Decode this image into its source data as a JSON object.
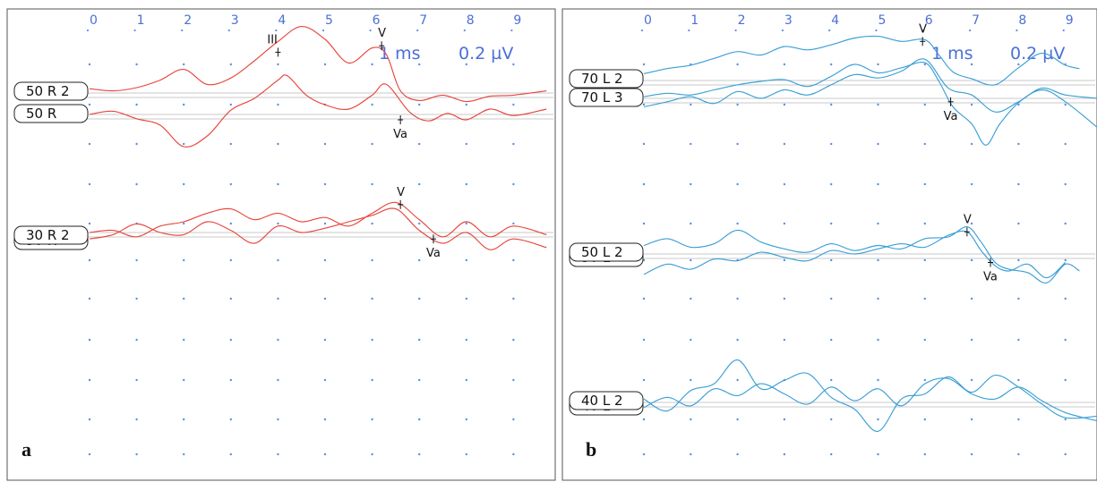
{
  "chart_data": [
    {
      "type": "line",
      "panel_label": "a",
      "xticks": [
        "0",
        "1",
        "2",
        "3",
        "4",
        "5",
        "6",
        "7",
        "8",
        "9"
      ],
      "xlim": [
        0,
        9.7
      ],
      "scale_time": "1 ms",
      "scale_amp": "0.2 µV",
      "trace_color": "#e8453c",
      "grid": "dotted",
      "channels": [
        {
          "label": "50 R 2",
          "series": [
            {
              "x": [
                0,
                0.5,
                1,
                1.5,
                2,
                2.5,
                3,
                3.5,
                4,
                4.5,
                5,
                5.5,
                6,
                6.3,
                6.6,
                7,
                7.5,
                8,
                8.5,
                9,
                9.7
              ],
              "y": [
                0.04,
                0.02,
                0.05,
                0.12,
                0.22,
                0.08,
                0.14,
                0.3,
                0.48,
                0.62,
                0.5,
                0.28,
                0.42,
                0.36,
                0.02,
                -0.07,
                -0.02,
                -0.08,
                -0.03,
                -0.02,
                0.02
              ]
            }
          ],
          "peaks": [
            {
              "label": "III",
              "x": 4.0,
              "y": 0.38
            },
            {
              "label": "V",
              "x": 6.2,
              "y": 0.44
            }
          ]
        },
        {
          "label": "50 R",
          "series": [
            {
              "x": [
                0,
                0.5,
                1,
                1.5,
                2,
                2.5,
                3,
                3.5,
                4,
                4.2,
                4.6,
                5,
                5.5,
                6,
                6.3,
                6.8,
                7.2,
                7.6,
                8,
                8.5,
                9,
                9.7
              ],
              "y": [
                0.0,
                0.03,
                -0.04,
                -0.1,
                -0.3,
                -0.2,
                0.04,
                0.15,
                0.32,
                0.36,
                0.18,
                0.09,
                0.05,
                0.18,
                0.28,
                0.02,
                -0.06,
                0.01,
                -0.05,
                0.05,
                -0.01,
                0.05
              ]
            }
          ],
          "peaks": [
            {
              "label": "Va",
              "x": 6.6,
              "y": -0.05
            }
          ]
        },
        {
          "label": "30 R 2",
          "overlapped_label": "30 R",
          "series": [
            {
              "x": [
                0,
                0.5,
                1,
                1.5,
                2,
                2.5,
                3,
                3.5,
                4,
                4.5,
                5,
                5.5,
                6,
                6.5,
                7,
                7.5,
                8,
                8.5,
                9,
                9.7
              ],
              "y": [
                0.0,
                0.02,
                -0.04,
                0.06,
                0.1,
                0.18,
                0.22,
                0.12,
                0.18,
                0.1,
                0.14,
                0.06,
                0.18,
                0.28,
                0.12,
                -0.04,
                0.1,
                -0.04,
                0.06,
                -0.02
              ]
            },
            {
              "x": [
                0,
                0.5,
                1,
                1.5,
                2,
                2.5,
                3,
                3.5,
                4,
                4.5,
                5,
                5.5,
                6,
                6.5,
                7,
                7.5,
                8,
                8.5,
                9,
                9.7
              ],
              "y": [
                -0.06,
                -0.02,
                0.08,
                0.0,
                -0.02,
                0.1,
                0.02,
                -0.1,
                0.06,
                0.0,
                0.04,
                0.1,
                0.16,
                0.22,
                0.02,
                -0.1,
                0.0,
                -0.16,
                -0.06,
                -0.14
              ]
            }
          ],
          "peaks": [
            {
              "label": "V",
              "x": 6.6,
              "y": 0.26
            },
            {
              "label": "Va",
              "x": 7.3,
              "y": -0.06
            }
          ]
        }
      ]
    },
    {
      "type": "line",
      "panel_label": "b",
      "xticks": [
        "0",
        "1",
        "2",
        "3",
        "4",
        "5",
        "6",
        "7",
        "8",
        "9"
      ],
      "xlim": [
        0,
        9.7
      ],
      "scale_time": "1 ms",
      "scale_amp": "0.2 µV",
      "trace_color": "#3a9fd6",
      "grid": "dotted",
      "channels": [
        {
          "label": "70 L 2",
          "series": [
            {
              "x": [
                0,
                0.5,
                1,
                1.5,
                2,
                2.5,
                3,
                3.5,
                4,
                4.5,
                5,
                5.5,
                6,
                6.3,
                6.6,
                7,
                7.5,
                8,
                8.5,
                9,
                9.3
              ],
              "y": [
                0.08,
                0.14,
                0.18,
                0.26,
                0.34,
                0.3,
                0.4,
                0.36,
                0.42,
                0.5,
                0.52,
                0.46,
                0.48,
                0.3,
                0.1,
                0.02,
                -0.05,
                0.15,
                0.32,
                0.18,
                0.14
              ]
            }
          ],
          "peaks": [
            {
              "label": "V",
              "x": 5.95,
              "y": 0.46
            }
          ]
        },
        {
          "label": "70 L 3",
          "series": [
            {
              "x": [
                0,
                0.5,
                1,
                1.5,
                2,
                2.5,
                3,
                3.5,
                4,
                4.5,
                5,
                5.5,
                6,
                6.3,
                6.6,
                7,
                7.3,
                7.6,
                8,
                8.5,
                9,
                9.7
              ],
              "y": [
                0.02,
                0.06,
                0.04,
                0.1,
                0.16,
                0.2,
                0.22,
                0.14,
                0.26,
                0.4,
                0.3,
                0.36,
                0.42,
                0.2,
                -0.1,
                -0.3,
                -0.55,
                -0.3,
                -0.05,
                0.1,
                -0.04,
                -0.35
              ]
            },
            {
              "x": [
                0,
                0.5,
                1,
                1.5,
                2,
                2.5,
                3,
                3.5,
                4,
                4.5,
                5,
                5.5,
                6,
                6.5,
                7,
                7.5,
                8,
                8.5,
                9,
                9.7
              ],
              "y": [
                -0.1,
                -0.04,
                0.02,
                -0.06,
                0.08,
                0.0,
                0.1,
                0.04,
                0.16,
                0.28,
                0.24,
                0.32,
                0.46,
                0.12,
                0.04,
                -0.16,
                -0.04,
                0.12,
                0.04,
                0.0
              ]
            }
          ],
          "peaks": [
            {
              "label": "Va",
              "x": 6.55,
              "y": -0.04
            }
          ]
        },
        {
          "label": "50 L 2",
          "overlapped_label": "50 L",
          "series": [
            {
              "x": [
                0,
                0.5,
                1,
                1.5,
                2,
                2.5,
                3,
                3.5,
                4,
                4.5,
                5,
                5.5,
                6,
                6.5,
                6.9,
                7.2,
                7.5,
                7.8,
                8.2,
                8.6,
                9,
                9.3
              ],
              "y": [
                0.1,
                0.18,
                0.08,
                0.12,
                0.28,
                0.14,
                0.06,
                0.02,
                0.12,
                0.04,
                0.1,
                0.06,
                0.18,
                0.2,
                0.32,
                0.14,
                -0.1,
                -0.18,
                -0.22,
                -0.34,
                -0.12,
                -0.2
              ]
            },
            {
              "x": [
                0,
                0.5,
                1,
                1.5,
                2,
                2.5,
                3,
                3.5,
                4,
                4.5,
                5,
                5.5,
                6,
                6.5,
                6.9,
                7.2,
                7.5,
                7.8,
                8.2,
                8.6,
                9
              ],
              "y": [
                -0.24,
                -0.12,
                -0.18,
                -0.06,
                -0.08,
                0.02,
                -0.04,
                -0.08,
                0.04,
                0.0,
                0.06,
                0.12,
                0.08,
                0.22,
                0.26,
                0.04,
                -0.14,
                -0.2,
                -0.12,
                -0.28,
                -0.1
              ]
            }
          ],
          "peaks": [
            {
              "label": "V",
              "x": 6.9,
              "y": 0.26
            },
            {
              "label": "Va",
              "x": 7.4,
              "y": -0.1
            }
          ]
        },
        {
          "label": "40 L 2",
          "overlapped_label": "40 L",
          "series": [
            {
              "x": [
                0,
                0.5,
                1,
                1.5,
                2,
                2.5,
                3,
                3.5,
                4,
                4.5,
                5,
                5.5,
                6,
                6.5,
                7,
                7.5,
                8,
                8.5,
                9,
                9.7
              ],
              "y": [
                0.04,
                -0.1,
                0.14,
                0.22,
                0.5,
                0.16,
                0.26,
                0.34,
                0.06,
                -0.08,
                -0.34,
                0.04,
                0.1,
                0.3,
                0.12,
                0.32,
                0.18,
                -0.02,
                -0.18,
                -0.16
              ]
            },
            {
              "x": [
                0,
                0.5,
                1,
                1.5,
                2,
                2.5,
                3,
                3.5,
                4,
                4.5,
                5,
                5.5,
                6,
                6.5,
                7,
                7.5,
                8,
                8.5,
                9,
                9.7
              ],
              "y": [
                -0.06,
                0.06,
                -0.04,
                0.16,
                0.08,
                0.22,
                0.1,
                -0.02,
                0.18,
                0.02,
                0.16,
                -0.04,
                0.22,
                0.28,
                0.1,
                0.04,
                0.18,
                0.02,
                -0.12,
                -0.22
              ]
            }
          ],
          "peaks": []
        }
      ]
    }
  ]
}
